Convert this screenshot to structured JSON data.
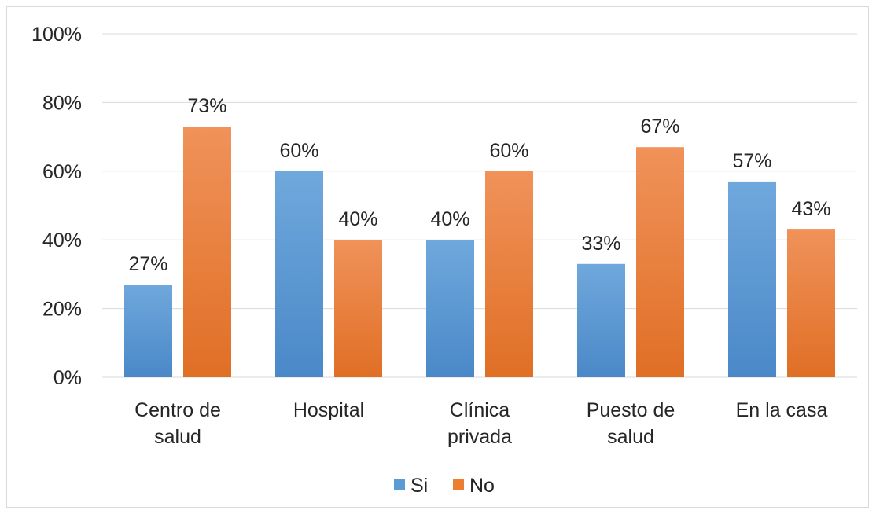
{
  "chart_data": {
    "type": "bar",
    "categories": [
      [
        "Centro de",
        "salud"
      ],
      [
        "Hospital"
      ],
      [
        "Clínica",
        "privada"
      ],
      [
        "Puesto de",
        "salud"
      ],
      [
        "En la casa"
      ]
    ],
    "series": [
      {
        "name": "Si",
        "values": [
          27,
          60,
          40,
          33,
          57
        ],
        "labels": [
          "27%",
          "60%",
          "40%",
          "33%",
          "57%"
        ],
        "color": "#5b9bd5"
      },
      {
        "name": "No",
        "values": [
          73,
          40,
          60,
          67,
          43
        ],
        "labels": [
          "73%",
          "40%",
          "60%",
          "67%",
          "43%"
        ],
        "color": "#ed7d31"
      }
    ],
    "ylim": [
      0,
      100
    ],
    "yticks": [
      "0%",
      "20%",
      "40%",
      "60%",
      "80%",
      "100%"
    ],
    "grid": true,
    "legend_position": "bottom"
  }
}
